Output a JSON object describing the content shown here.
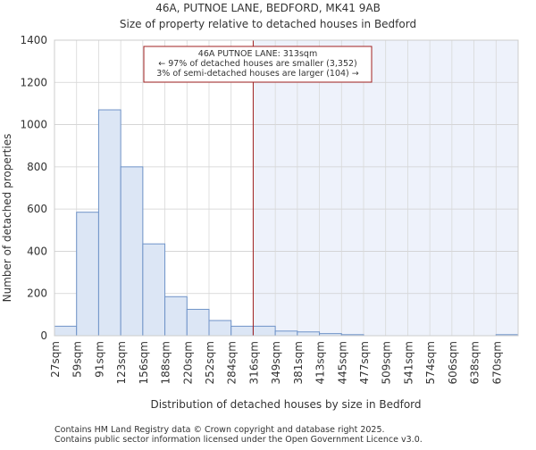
{
  "chart_data": {
    "type": "bar",
    "title": "46A, PUTNOE LANE, BEDFORD, MK41 9AB",
    "subtitle": "Size of property relative to detached houses in Bedford",
    "xlabel": "Distribution of detached houses by size in Bedford",
    "ylabel": "Number of detached properties",
    "ylim": [
      0,
      1400
    ],
    "yticks": [
      0,
      200,
      400,
      600,
      800,
      1000,
      1200,
      1400
    ],
    "categories": [
      "27sqm",
      "59sqm",
      "91sqm",
      "123sqm",
      "156sqm",
      "188sqm",
      "220sqm",
      "252sqm",
      "284sqm",
      "316sqm",
      "349sqm",
      "381sqm",
      "413sqm",
      "445sqm",
      "477sqm",
      "509sqm",
      "541sqm",
      "574sqm",
      "606sqm",
      "638sqm",
      "670sqm"
    ],
    "values": [
      45,
      585,
      1070,
      800,
      435,
      185,
      125,
      72,
      45,
      45,
      22,
      18,
      10,
      5,
      0,
      0,
      0,
      0,
      0,
      0,
      5
    ],
    "bar_fill": "#dce6f5",
    "bar_stroke": "#6f93c8",
    "highlight": {
      "value_index": 9.0,
      "line_color": "#a02020",
      "shade_color": "#eef2fb"
    },
    "annotation": {
      "lines": [
        "46A PUTNOE LANE: 313sqm",
        "← 97% of detached houses are smaller (3,352)",
        "3% of semi-detached houses are larger (104) →"
      ]
    }
  },
  "footer": {
    "line1": "Contains HM Land Registry data © Crown copyright and database right 2025.",
    "line2": "Contains public sector information licensed under the Open Government Licence v3.0."
  }
}
